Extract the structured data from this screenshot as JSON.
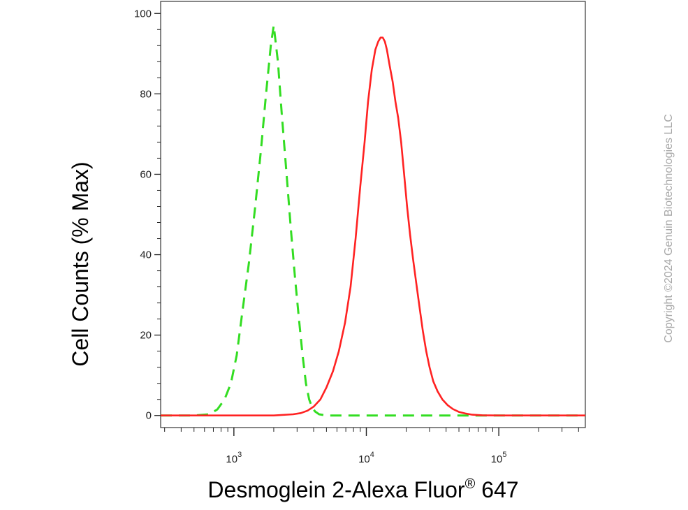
{
  "chart_data": {
    "type": "line",
    "title": "",
    "xlabel": {
      "main": "Desmoglein 2-Alexa Fluor",
      "superscript": "®",
      "suffix": " 647"
    },
    "ylabel": "Cell Counts (% Max)",
    "x_scale": "log",
    "xlim": [
      280,
      450000
    ],
    "ylim": [
      -3,
      103
    ],
    "y_ticks": [
      0,
      20,
      40,
      60,
      80,
      100
    ],
    "y_tick_labels": [
      "0",
      "20",
      "40",
      "60",
      "80",
      "100"
    ],
    "x_ticks": [
      {
        "value": 1000,
        "base": "10",
        "exp": "3"
      },
      {
        "value": 10000,
        "base": "10",
        "exp": "4"
      },
      {
        "value": 100000,
        "base": "10",
        "exp": "5"
      }
    ],
    "grid": false,
    "legend": "none",
    "series": [
      {
        "color": "#33dd22",
        "style": "dashed",
        "x": [
          280,
          500,
          650,
          750,
          850,
          950,
          1050,
          1150,
          1300,
          1450,
          1600,
          1750,
          1900,
          2000,
          2150,
          2300,
          2500,
          2700,
          2900,
          3100,
          3300,
          3500,
          3700,
          3900,
          4100,
          4400,
          5000,
          7000,
          20000,
          100000,
          450000
        ],
        "y": [
          0,
          0,
          0.3,
          1.5,
          4,
          8,
          15,
          25,
          38,
          52,
          66,
          80,
          92,
          97,
          88,
          75,
          60,
          46,
          34,
          24,
          15,
          8,
          4,
          2,
          1,
          0.3,
          0,
          0,
          0,
          0,
          0
        ]
      },
      {
        "color": "#ff2222",
        "style": "solid",
        "x": [
          280,
          2000,
          2800,
          3200,
          3600,
          4000,
          4500,
          5000,
          5600,
          6200,
          6900,
          7600,
          8300,
          9000,
          9700,
          10300,
          11000,
          11700,
          12300,
          12800,
          13300,
          13800,
          14300,
          15000,
          15800,
          16600,
          17400,
          18300,
          19300,
          20300,
          21400,
          22500,
          23800,
          25200,
          26700,
          28300,
          30000,
          32000,
          34500,
          37500,
          41000,
          45000,
          50000,
          56000,
          63000,
          75000,
          100000,
          450000
        ],
        "y": [
          0,
          0,
          0.3,
          0.6,
          1.2,
          2.2,
          4,
          7,
          11,
          16,
          23,
          32,
          44,
          57,
          68,
          78,
          86,
          91,
          93,
          94,
          94,
          93,
          91,
          87,
          83,
          78,
          74,
          68,
          60,
          52,
          45,
          39,
          33,
          27,
          21,
          16,
          12,
          8.5,
          6,
          4,
          2.6,
          1.6,
          0.9,
          0.5,
          0.2,
          0.05,
          0,
          0
        ]
      }
    ]
  },
  "watermark": "Copyright ©2024 Genuin Biotechnologies LLC"
}
